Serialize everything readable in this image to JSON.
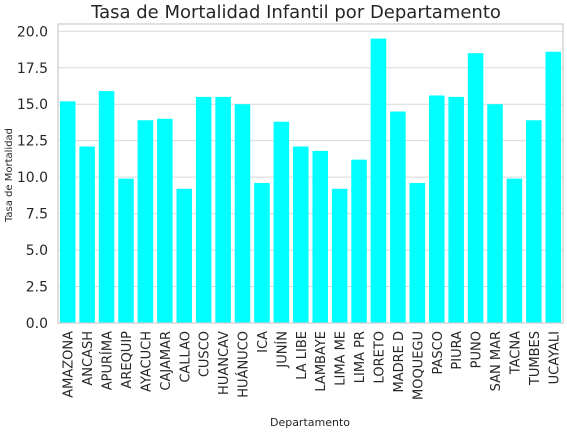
{
  "chart_data": {
    "type": "bar",
    "title": "Tasa de Mortalidad Infantil por Departamento",
    "xlabel": "Departamento",
    "ylabel": "Tasa de Mortalidad",
    "ylim": [
      0,
      20.5
    ],
    "yticks": [
      0.0,
      2.5,
      5.0,
      7.5,
      10.0,
      12.5,
      15.0,
      17.5,
      20.0
    ],
    "ytick_labels": [
      "0.0",
      "2.5",
      "5.0",
      "7.5",
      "10.0",
      "12.5",
      "15.0",
      "17.5",
      "20.0"
    ],
    "grid": "horizontal",
    "bar_color": "#00FFFF",
    "categories": [
      "AMAZONA",
      "ANCASH",
      "APURÍMA",
      "AREQUIP",
      "AYACUCH",
      "CAJAMAR",
      "CALLAO",
      "CUSCO",
      "HUANCAV",
      "HUÁNUCO",
      "ICA",
      "JUNÍN",
      "LA LIBE",
      "LAMBAYE",
      "LIMA ME",
      "LIMA PR",
      "LORETO",
      "MADRE D",
      "MOQUEGU",
      "PASCO",
      "PIURA",
      "PUNO",
      "SAN MAR",
      "TACNA",
      "TUMBES",
      "UCAYALI"
    ],
    "values": [
      15.2,
      12.1,
      15.9,
      9.9,
      13.9,
      14.0,
      9.2,
      15.5,
      15.5,
      15.0,
      9.6,
      13.8,
      12.1,
      11.8,
      9.2,
      11.2,
      19.5,
      14.5,
      9.6,
      15.6,
      15.5,
      18.5,
      15.0,
      9.9,
      13.9,
      18.6
    ]
  }
}
